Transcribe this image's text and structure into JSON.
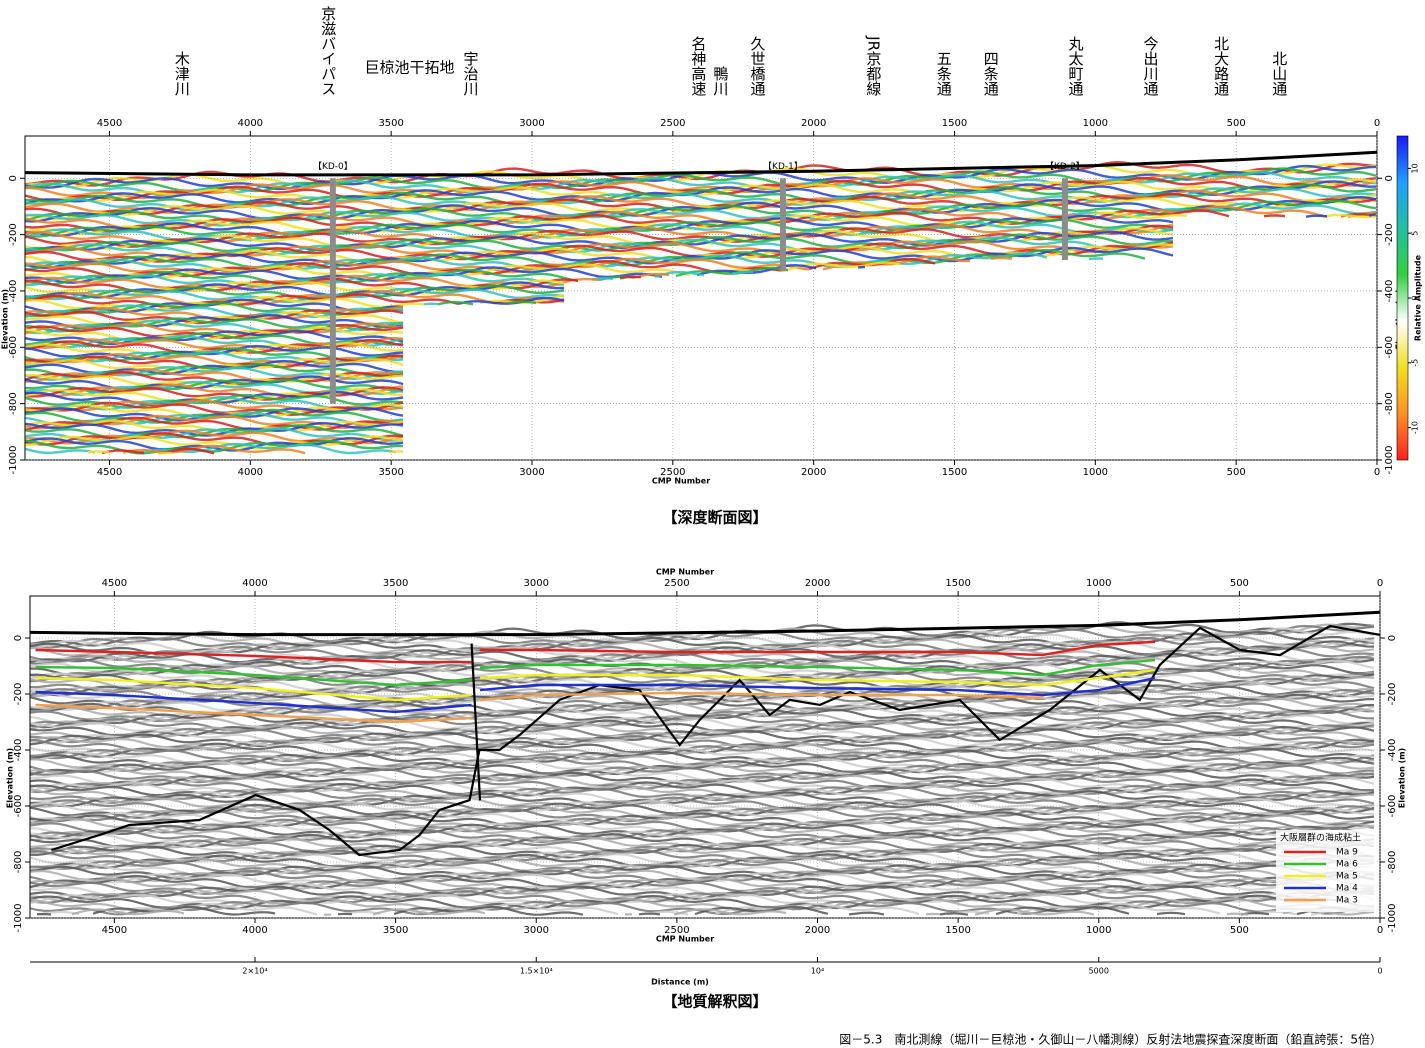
{
  "chart_data": [
    {
      "type": "seismic-depth",
      "xlabel": "CMP Number",
      "ylabel": "Elevation (m)",
      "xlim": [
        4800,
        0
      ],
      "xticks": [
        4500,
        4000,
        3500,
        3000,
        2500,
        2000,
        1500,
        1000,
        500,
        0
      ],
      "ylim": [
        -1000,
        150
      ],
      "yticks": [
        -1000,
        -800,
        -600,
        -400,
        -200,
        0
      ],
      "grid": true,
      "surface": {
        "x": [
          4800,
          4000,
          3000,
          2000,
          1000,
          500,
          0
        ],
        "values": [
          20,
          12,
          12,
          25,
          45,
          65,
          92
        ]
      },
      "wells": [
        {
          "label": "【KD-0】",
          "x": 3707,
          "bottom": -800
        },
        {
          "label": "【KD-1】",
          "x": 2109,
          "bottom": -330
        },
        {
          "label": "【KD-2】",
          "x": 1108,
          "bottom": -290
        }
      ],
      "annotations": [
        {
          "text": "木津川",
          "x": 4245
        },
        {
          "text": "京滋バイパス",
          "x": 3725
        },
        {
          "text": "巨椋池干拓地",
          "x": 3435,
          "horizontal": true
        },
        {
          "text": "宇治川",
          "x": 3220
        },
        {
          "text": "名神高速",
          "x": 2411
        },
        {
          "text": "鴨川",
          "x": 2333
        },
        {
          "text": "久世橋通",
          "x": 2201
        },
        {
          "text": "JR京都線",
          "x": 1790
        },
        {
          "text": "五条通",
          "x": 1540
        },
        {
          "text": "四条通",
          "x": 1373
        },
        {
          "text": "丸太町通",
          "x": 1072
        },
        {
          "text": "今出川通",
          "x": 806
        },
        {
          "text": "北大路通",
          "x": 555
        },
        {
          "text": "北山通",
          "x": 349
        }
      ],
      "colorbar": {
        "label": "Relative Amplitude",
        "lim": [
          -12.5,
          12.5
        ],
        "ticks": [
          -10,
          -5,
          0,
          5,
          10
        ],
        "colors": [
          "#ff2020",
          "#ff9020",
          "#f0e020",
          "#ffffff",
          "#30d040",
          "#20c0a0",
          "#1ea0ff",
          "#1a1aff"
        ]
      },
      "caption": "【深度断面図】"
    },
    {
      "type": "seismic-interpretation",
      "xlabel": "CMP Number",
      "ylabel": "Elevation (m)",
      "xlim": [
        4800,
        0
      ],
      "xticks": [
        4500,
        4000,
        3500,
        3000,
        2500,
        2000,
        1500,
        1000,
        500,
        0
      ],
      "ylim": [
        -1000,
        150
      ],
      "yticks": [
        -1000,
        -800,
        -600,
        -400,
        -200,
        0
      ],
      "grid": true,
      "distance_axis": {
        "label": "Distance (m)",
        "lim": [
          24000,
          0
        ],
        "ticks": [
          {
            "value": 20000,
            "label": "2×10⁴"
          },
          {
            "value": 15000,
            "label": "1.5×10⁴"
          },
          {
            "value": 10000,
            "label": "10⁴"
          },
          5000,
          0
        ]
      },
      "surface": {
        "x": [
          4800,
          4000,
          3000,
          2000,
          1000,
          500,
          0
        ],
        "values": [
          20,
          12,
          12,
          25,
          45,
          65,
          92
        ]
      },
      "series": [
        {
          "name": "Ma 9",
          "color": "#e02020",
          "x": [
            4780,
            4500,
            4000,
            3500,
            3230,
            null,
            3200,
            3000,
            2500,
            2000,
            1500,
            1200,
            1000,
            800
          ],
          "values": [
            -43,
            -50,
            -64,
            -86,
            -86,
            null,
            -43,
            -43,
            -50,
            -50,
            -50,
            -61,
            -25,
            -14
          ]
        },
        {
          "name": "Ma 6",
          "color": "#30c030",
          "x": [
            4780,
            4500,
            4000,
            3500,
            3230,
            null,
            3200,
            3000,
            2500,
            2000,
            1500,
            1200,
            1000,
            800
          ],
          "values": [
            -104,
            -107,
            -132,
            -168,
            -150,
            null,
            -107,
            -96,
            -96,
            -104,
            -114,
            -132,
            -96,
            -79
          ]
        },
        {
          "name": "Ma 5",
          "color": "#f0f020",
          "x": [
            4780,
            4500,
            4000,
            3500,
            3230,
            null,
            3200,
            3000,
            2500,
            2000,
            1500,
            1200,
            1000,
            800
          ],
          "values": [
            -143,
            -150,
            -179,
            -221,
            -204,
            null,
            -143,
            -132,
            -132,
            -150,
            -157,
            -168,
            -143,
            -114
          ]
        },
        {
          "name": "Ma 4",
          "color": "#2030d0",
          "x": [
            4780,
            4500,
            4000,
            3500,
            3230,
            null,
            3200,
            3000,
            2500,
            2000,
            1500,
            1200,
            1000,
            800
          ],
          "values": [
            -193,
            -204,
            -232,
            -264,
            -239,
            null,
            -186,
            -168,
            -168,
            -179,
            -186,
            -204,
            -186,
            -143
          ]
        },
        {
          "name": "Ma 3",
          "color": "#f0a050",
          "x": [
            4780,
            4500,
            4000,
            3500,
            3230,
            null,
            3200,
            3000,
            2500,
            2000,
            1500,
            1200
          ],
          "values": [
            -239,
            -250,
            -275,
            -300,
            -286,
            null,
            -221,
            -204,
            -196,
            -204,
            -204,
            -214
          ]
        }
      ],
      "boundaries": [
        {
          "x": [
            4724,
            4554,
            4447,
            4198,
            3998,
            3842,
            3735,
            3629,
            3486,
            3415,
            3344,
            3237,
            3202,
            3131,
            3059,
            2917,
            2775,
            2633,
            2490,
            2419,
            2277,
            2170,
            2099,
            1992,
            1885,
            1708,
            1494,
            1352,
            1174,
            996,
            854,
            783,
            640,
            498,
            356,
            178,
            0
          ],
          "values": [
            -757,
            -704,
            -668,
            -650,
            -561,
            -614,
            -686,
            -775,
            -757,
            -704,
            -614,
            -579,
            -400,
            -400,
            -346,
            -221,
            -168,
            -186,
            -382,
            -293,
            -150,
            -275,
            -221,
            -239,
            -193,
            -257,
            -221,
            -364,
            -257,
            -114,
            -221,
            -96,
            36,
            -43,
            -61,
            43,
            11
          ]
        },
        {
          "x": [
            3230,
            3215,
            3200
          ],
          "values": [
            -20,
            -300,
            -580
          ]
        }
      ],
      "legend": {
        "title": "大阪層群の海成粘土",
        "position": "lower right"
      },
      "caption": "【地質解釈図】"
    }
  ],
  "caption": "図－5.3　南北測線（堀川－巨椋池・久御山－八幡測線）反射法地震探査深度断面（鉛直誇張：5倍）"
}
